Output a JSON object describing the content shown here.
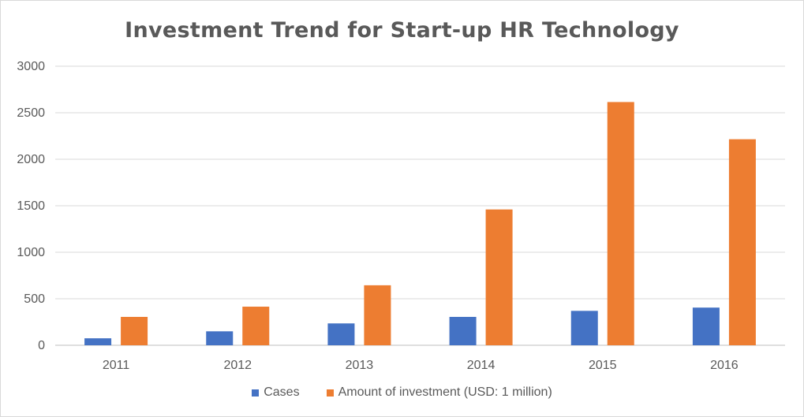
{
  "chart_data": {
    "type": "bar",
    "title": "Investment Trend for Start-up HR Technology",
    "categories": [
      "2011",
      "2012",
      "2013",
      "2014",
      "2015",
      "2016"
    ],
    "series": [
      {
        "name": "Cases",
        "color": "#4472c4",
        "values": [
          75,
          150,
          235,
          305,
          370,
          405
        ]
      },
      {
        "name": "Amount of investment (USD: 1 million)",
        "color": "#ed7d31",
        "values": [
          305,
          415,
          645,
          1460,
          2615,
          2215
        ]
      }
    ],
    "yticks": [
      "0",
      "500",
      "1000",
      "1500",
      "2000",
      "2500",
      "3000"
    ],
    "ylim": [
      0,
      3000
    ],
    "grid": true,
    "legend_position": "bottom"
  }
}
